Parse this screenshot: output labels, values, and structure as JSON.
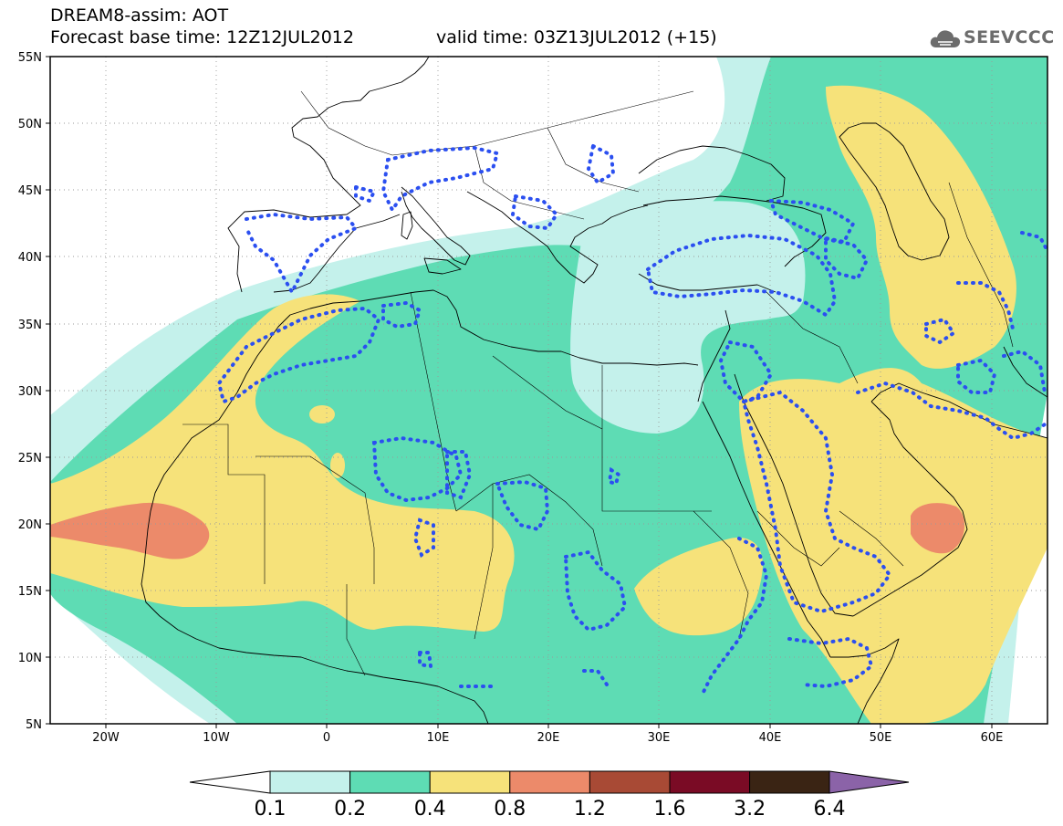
{
  "header": {
    "title": "DREAM8-assim: AOT",
    "base_time": "Forecast base time: 12Z12JUL2012",
    "valid_time": "valid time: 03Z13JUL2012 (+15)",
    "logo_text": "SEEVCCC",
    "logo_icon": "cloud-icon"
  },
  "map": {
    "lon_range": [
      -25,
      65
    ],
    "lat_range": [
      5,
      55
    ],
    "lon_ticks": [
      {
        "lon": -20,
        "label": "20W"
      },
      {
        "lon": -10,
        "label": "10W"
      },
      {
        "lon": 0,
        "label": "0"
      },
      {
        "lon": 10,
        "label": "10E"
      },
      {
        "lon": 20,
        "label": "20E"
      },
      {
        "lon": 30,
        "label": "30E"
      },
      {
        "lon": 40,
        "label": "40E"
      },
      {
        "lon": 50,
        "label": "50E"
      },
      {
        "lon": 60,
        "label": "60E"
      }
    ],
    "lat_ticks": [
      {
        "lat": 55,
        "label": "55N"
      },
      {
        "lat": 50,
        "label": "50N"
      },
      {
        "lat": 45,
        "label": "45N"
      },
      {
        "lat": 40,
        "label": "40N"
      },
      {
        "lat": 35,
        "label": "35N"
      },
      {
        "lat": 30,
        "label": "30N"
      },
      {
        "lat": 25,
        "label": "25N"
      },
      {
        "lat": 20,
        "label": "20N"
      },
      {
        "lat": 15,
        "label": "15N"
      },
      {
        "lat": 10,
        "label": "10N"
      },
      {
        "lat": 5,
        "label": "5N"
      }
    ],
    "grid": true
  },
  "colorbar": {
    "labels": [
      "0.1",
      "0.2",
      "0.4",
      "0.8",
      "1.2",
      "1.6",
      "3.2",
      "6.4"
    ],
    "colors": [
      "#ffffff",
      "#c4f1eb",
      "#5edcb4",
      "#f6e27a",
      "#ec8a6a",
      "#a84a35",
      "#7a0b25",
      "#3a2414",
      "#8b63a8"
    ],
    "below_color": "#ffffff",
    "above_color": "#8b63a8"
  },
  "chart_data": {
    "type": "heatmap",
    "variable": "AOT",
    "levels": [
      0.1,
      0.2,
      0.4,
      0.8,
      1.2,
      1.6,
      3.2,
      6.4
    ],
    "max_regions": [
      {
        "lon": -14,
        "lat": 20,
        "level_range": [
          0.8,
          1.2
        ]
      },
      {
        "lon": 55,
        "lat": 20,
        "level_range": [
          0.8,
          1.2
        ]
      }
    ]
  }
}
